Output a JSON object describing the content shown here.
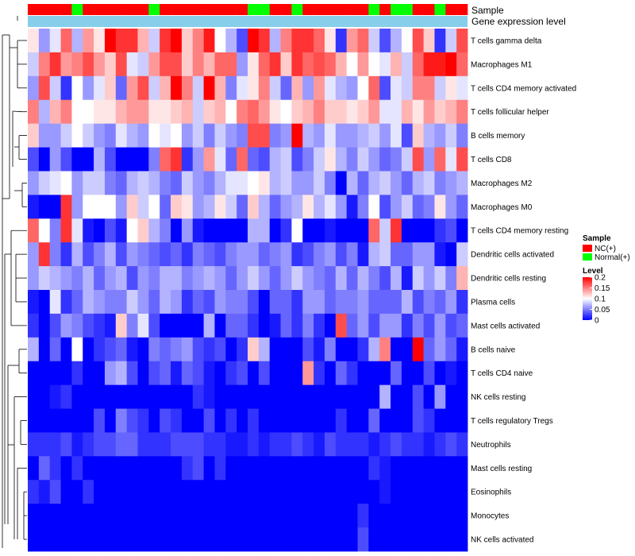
{
  "chart_data": {
    "type": "heatmap",
    "annotation_labels": {
      "sample": "Sample",
      "gene": "Gene expression level"
    },
    "sample_groups": [
      "NC",
      "NC",
      "NC",
      "NC",
      "N",
      "NC",
      "NC",
      "NC",
      "NC",
      "NC",
      "NC",
      "N",
      "NC",
      "NC",
      "NC",
      "NC",
      "NC",
      "NC",
      "NC",
      "NC",
      "N",
      "N",
      "NC",
      "NC",
      "N",
      "NC",
      "NC",
      "NC",
      "NC",
      "NC",
      "NC",
      "N",
      "NC",
      "N",
      "N",
      "NC",
      "NC",
      "N",
      "NC",
      "NC"
    ],
    "gene_color": "#87ceeb",
    "rows": [
      "T cells gamma delta",
      "Macrophages M1",
      "T cells CD4 memory activated",
      "T cells follicular helper",
      "B cells memory",
      "T cells CD8",
      "Macrophages M2",
      "Macrophages M0",
      "T cells CD4 memory resting",
      "Dendritic cells activated",
      "Dendritic cells resting",
      "Plasma cells",
      "Mast cells activated",
      "B cells naive",
      "T cells CD4 naive",
      "NK cells resting",
      "T cells regulatory  Tregs",
      "Neutrophils",
      "Mast cells resting",
      "Eosinophils",
      "Monocytes",
      "NK cells activated"
    ],
    "values": [
      [
        0.11,
        0.06,
        0.09,
        0.16,
        0.07,
        0.14,
        0.11,
        0.2,
        0.18,
        0.18,
        0.13,
        0.08,
        0.18,
        0.2,
        0.12,
        0.15,
        0.19,
        0.1,
        0.07,
        0.03,
        0.2,
        0.18,
        0.07,
        0.15,
        0.18,
        0.18,
        0.16,
        0.11,
        0.02,
        0.14,
        0.16,
        0.08,
        0.03,
        0.07,
        0.1,
        0.17,
        0.12,
        0.02,
        0.08,
        0.17
      ],
      [
        0.08,
        0.15,
        0.18,
        0.14,
        0.15,
        0.17,
        0.14,
        0.12,
        0.17,
        0.09,
        0.08,
        0.14,
        0.17,
        0.17,
        0.12,
        0.15,
        0.13,
        0.16,
        0.16,
        0.06,
        0.11,
        0.16,
        0.18,
        0.12,
        0.18,
        0.16,
        0.17,
        0.16,
        0.13,
        0.1,
        0.14,
        0.1,
        0.09,
        0.13,
        0.08,
        0.16,
        0.19,
        0.19,
        0.2,
        0.16
      ],
      [
        0.06,
        0.17,
        0.08,
        0.02,
        0.1,
        0.06,
        0.09,
        0.12,
        0.04,
        0.14,
        0.17,
        0.08,
        0.13,
        0.2,
        0.15,
        0.08,
        0.2,
        0.13,
        0.05,
        0.09,
        0.11,
        0.15,
        0.08,
        0.04,
        0.13,
        0.06,
        0.14,
        0.09,
        0.07,
        0.06,
        0.1,
        0.16,
        0.03,
        0.09,
        0.08,
        0.15,
        0.15,
        0.08,
        0.11,
        0.09
      ],
      [
        0.15,
        0.07,
        0.13,
        0.15,
        0.1,
        0.1,
        0.11,
        0.11,
        0.13,
        0.14,
        0.14,
        0.11,
        0.11,
        0.12,
        0.13,
        0.08,
        0.12,
        0.13,
        0.1,
        0.15,
        0.16,
        0.14,
        0.11,
        0.1,
        0.12,
        0.13,
        0.15,
        0.12,
        0.12,
        0.11,
        0.12,
        0.14,
        0.09,
        0.09,
        0.13,
        0.11,
        0.14,
        0.12,
        0.13,
        0.15
      ],
      [
        0.12,
        0.06,
        0.06,
        0.08,
        0.1,
        0.08,
        0.06,
        0.05,
        0.09,
        0.07,
        0.06,
        0.1,
        0.09,
        0.1,
        0.06,
        0.08,
        0.05,
        0.08,
        0.06,
        0.05,
        0.17,
        0.17,
        0.05,
        0.06,
        0.2,
        0.07,
        0.06,
        0.09,
        0.06,
        0.06,
        0.07,
        0.08,
        0.06,
        0.09,
        0.03,
        0.12,
        0.07,
        0.06,
        0.08,
        0.05
      ],
      [
        0.03,
        0.0,
        0.06,
        0.03,
        0.0,
        0.0,
        0.07,
        0.03,
        0.0,
        0.0,
        0.0,
        0.05,
        0.16,
        0.18,
        0.02,
        0.06,
        0.14,
        0.09,
        0.04,
        0.16,
        0.04,
        0.03,
        0.07,
        0.08,
        0.03,
        0.05,
        0.08,
        0.11,
        0.07,
        0.05,
        0.08,
        0.06,
        0.04,
        0.05,
        0.08,
        0.17,
        0.06,
        0.16,
        0.09,
        0.17
      ],
      [
        0.06,
        0.08,
        0.09,
        0.1,
        0.06,
        0.08,
        0.08,
        0.05,
        0.04,
        0.07,
        0.08,
        0.07,
        0.05,
        0.04,
        0.08,
        0.06,
        0.05,
        0.07,
        0.09,
        0.09,
        0.1,
        0.11,
        0.07,
        0.08,
        0.06,
        0.06,
        0.08,
        0.05,
        0.0,
        0.07,
        0.04,
        0.07,
        0.08,
        0.06,
        0.04,
        0.07,
        0.08,
        0.05,
        0.06,
        0.07
      ],
      [
        0.01,
        0.0,
        0.0,
        0.18,
        0.06,
        0.1,
        0.1,
        0.1,
        0.06,
        0.12,
        0.08,
        0.1,
        0.04,
        0.12,
        0.11,
        0.06,
        0.07,
        0.11,
        0.08,
        0.04,
        0.12,
        0.07,
        0.04,
        0.06,
        0.07,
        0.11,
        0.07,
        0.09,
        0.06,
        0.01,
        0.05,
        0.1,
        0.03,
        0.06,
        0.08,
        0.04,
        0.05,
        0.11,
        0.06,
        0.04
      ],
      [
        0.16,
        0.1,
        0.05,
        0.18,
        0.09,
        0.01,
        0.0,
        0.03,
        0.01,
        0.1,
        0.12,
        0.07,
        0.05,
        0.0,
        0.06,
        0.01,
        0.0,
        0.0,
        0.0,
        0.0,
        0.07,
        0.07,
        0.0,
        0.02,
        0.1,
        0.0,
        0.0,
        0.01,
        0.0,
        0.0,
        0.0,
        0.16,
        0.08,
        0.18,
        0.0,
        0.0,
        0.0,
        0.02,
        0.03,
        0.0
      ],
      [
        0.06,
        0.18,
        0.05,
        0.02,
        0.07,
        0.03,
        0.05,
        0.07,
        0.03,
        0.06,
        0.05,
        0.04,
        0.03,
        0.04,
        0.02,
        0.05,
        0.04,
        0.03,
        0.05,
        0.06,
        0.06,
        0.04,
        0.05,
        0.06,
        0.02,
        0.03,
        0.05,
        0.06,
        0.03,
        0.05,
        0.01,
        0.07,
        0.08,
        0.04,
        0.04,
        0.06,
        0.06,
        0.01,
        0.0,
        0.08
      ],
      [
        0.06,
        0.08,
        0.07,
        0.06,
        0.05,
        0.07,
        0.04,
        0.06,
        0.07,
        0.03,
        0.06,
        0.05,
        0.07,
        0.07,
        0.05,
        0.06,
        0.07,
        0.06,
        0.04,
        0.06,
        0.08,
        0.06,
        0.04,
        0.06,
        0.08,
        0.06,
        0.05,
        0.04,
        0.07,
        0.04,
        0.07,
        0.05,
        0.03,
        0.07,
        0.01,
        0.08,
        0.06,
        0.08,
        0.05,
        0.13
      ],
      [
        0.01,
        0.0,
        0.09,
        0.02,
        0.04,
        0.07,
        0.06,
        0.05,
        0.05,
        0.08,
        0.06,
        0.04,
        0.07,
        0.06,
        0.02,
        0.04,
        0.03,
        0.06,
        0.05,
        0.05,
        0.03,
        0.0,
        0.04,
        0.04,
        0.02,
        0.06,
        0.06,
        0.04,
        0.05,
        0.05,
        0.06,
        0.04,
        0.04,
        0.04,
        0.07,
        0.03,
        0.05,
        0.04,
        0.06,
        0.02
      ],
      [
        0.02,
        0.0,
        0.03,
        0.06,
        0.05,
        0.03,
        0.02,
        0.01,
        0.12,
        0.05,
        0.09,
        0.03,
        0.0,
        0.0,
        0.0,
        0.0,
        0.07,
        0.0,
        0.04,
        0.04,
        0.02,
        0.0,
        0.01,
        0.04,
        0.02,
        0.05,
        0.02,
        0.0,
        0.17,
        0.04,
        0.06,
        0.03,
        0.06,
        0.06,
        0.02,
        0.05,
        0.03,
        0.06,
        0.03,
        0.04
      ],
      [
        0.07,
        0.0,
        0.04,
        0.0,
        0.1,
        0.0,
        0.02,
        0.03,
        0.04,
        0.01,
        0.0,
        0.05,
        0.04,
        0.05,
        0.06,
        0.03,
        0.02,
        0.03,
        0.0,
        0.02,
        0.12,
        0.07,
        0.0,
        0.0,
        0.0,
        0.03,
        0.01,
        0.05,
        0.0,
        0.0,
        0.02,
        0.07,
        0.15,
        0.0,
        0.0,
        0.2,
        0.04,
        0.06,
        0.04,
        0.01
      ],
      [
        0.0,
        0.0,
        0.0,
        0.0,
        0.02,
        0.0,
        0.0,
        0.06,
        0.07,
        0.03,
        0.0,
        0.03,
        0.04,
        0.01,
        0.04,
        0.03,
        0.01,
        0.0,
        0.02,
        0.03,
        0.0,
        0.03,
        0.0,
        0.0,
        0.0,
        0.14,
        0.02,
        0.0,
        0.04,
        0.02,
        0.0,
        0.0,
        0.0,
        0.04,
        0.0,
        0.0,
        0.03,
        0.0,
        0.01,
        0.0
      ],
      [
        0.0,
        0.0,
        0.01,
        0.02,
        0.0,
        0.0,
        0.0,
        0.0,
        0.0,
        0.0,
        0.0,
        0.0,
        0.0,
        0.0,
        0.0,
        0.02,
        0.01,
        0.0,
        0.0,
        0.0,
        0.0,
        0.0,
        0.0,
        0.0,
        0.0,
        0.0,
        0.0,
        0.0,
        0.0,
        0.0,
        0.0,
        0.0,
        0.07,
        0.0,
        0.0,
        0.03,
        0.0,
        0.06,
        0.0,
        0.0
      ],
      [
        0.0,
        0.0,
        0.0,
        0.0,
        0.0,
        0.0,
        0.03,
        0.0,
        0.05,
        0.03,
        0.02,
        0.0,
        0.03,
        0.02,
        0.0,
        0.0,
        0.03,
        0.0,
        0.02,
        0.0,
        0.02,
        0.0,
        0.0,
        0.0,
        0.0,
        0.0,
        0.0,
        0.0,
        0.02,
        0.0,
        0.0,
        0.04,
        0.0,
        0.0,
        0.0,
        0.03,
        0.02,
        0.0,
        0.0,
        0.0
      ],
      [
        0.02,
        0.02,
        0.02,
        0.03,
        0.01,
        0.02,
        0.03,
        0.03,
        0.04,
        0.04,
        0.02,
        0.02,
        0.02,
        0.03,
        0.03,
        0.03,
        0.02,
        0.02,
        0.01,
        0.01,
        0.02,
        0.01,
        0.02,
        0.02,
        0.03,
        0.02,
        0.01,
        0.03,
        0.02,
        0.02,
        0.02,
        0.01,
        0.02,
        0.03,
        0.02,
        0.02,
        0.01,
        0.02,
        0.03,
        0.02
      ],
      [
        0.0,
        0.04,
        0.02,
        0.0,
        0.02,
        0.0,
        0.0,
        0.0,
        0.0,
        0.0,
        0.0,
        0.0,
        0.0,
        0.0,
        0.02,
        0.03,
        0.0,
        0.02,
        0.0,
        0.0,
        0.0,
        0.0,
        0.0,
        0.0,
        0.0,
        0.0,
        0.0,
        0.0,
        0.0,
        0.0,
        0.0,
        0.02,
        0.01,
        0.0,
        0.0,
        0.0,
        0.0,
        0.0,
        0.0,
        0.0
      ],
      [
        0.02,
        0.01,
        0.03,
        0.0,
        0.0,
        0.02,
        0.0,
        0.0,
        0.0,
        0.0,
        0.0,
        0.0,
        0.0,
        0.0,
        0.0,
        0.0,
        0.0,
        0.0,
        0.0,
        0.0,
        0.0,
        0.0,
        0.0,
        0.0,
        0.0,
        0.0,
        0.0,
        0.0,
        0.0,
        0.0,
        0.0,
        0.0,
        0.01,
        0.0,
        0.0,
        0.0,
        0.0,
        0.0,
        0.0,
        0.0
      ],
      [
        0.0,
        0.0,
        0.0,
        0.0,
        0.0,
        0.0,
        0.0,
        0.0,
        0.0,
        0.0,
        0.0,
        0.0,
        0.0,
        0.0,
        0.0,
        0.0,
        0.0,
        0.0,
        0.0,
        0.0,
        0.0,
        0.0,
        0.0,
        0.0,
        0.0,
        0.0,
        0.0,
        0.0,
        0.0,
        0.0,
        0.02,
        0.0,
        0.0,
        0.0,
        0.0,
        0.0,
        0.0,
        0.0,
        0.0,
        0.0
      ],
      [
        0.0,
        0.0,
        0.0,
        0.0,
        0.0,
        0.0,
        0.0,
        0.0,
        0.0,
        0.0,
        0.0,
        0.0,
        0.0,
        0.0,
        0.0,
        0.0,
        0.0,
        0.0,
        0.0,
        0.0,
        0.0,
        0.0,
        0.0,
        0.0,
        0.0,
        0.0,
        0.0,
        0.0,
        0.0,
        0.0,
        0.03,
        0.0,
        0.0,
        0.0,
        0.0,
        0.0,
        0.0,
        0.0,
        0.0,
        0.0
      ]
    ],
    "legend": {
      "sample_title": "Sample",
      "sample_items": [
        {
          "key": "NC",
          "label": "NC(+)",
          "color": "#ff0000"
        },
        {
          "key": "N",
          "label": "Normal(+)",
          "color": "#00ff00"
        }
      ],
      "level_title": "Level",
      "level_ticks": [
        "0.2",
        "0.15",
        "0.1",
        "0.05",
        "0"
      ],
      "level_values": [
        0.2,
        0.15,
        0.1,
        0.05,
        0
      ],
      "level_range": [
        0,
        0.2
      ]
    },
    "color_scale": {
      "low": "#0000ff",
      "mid": "#ffffff",
      "high": "#ff0000"
    }
  }
}
